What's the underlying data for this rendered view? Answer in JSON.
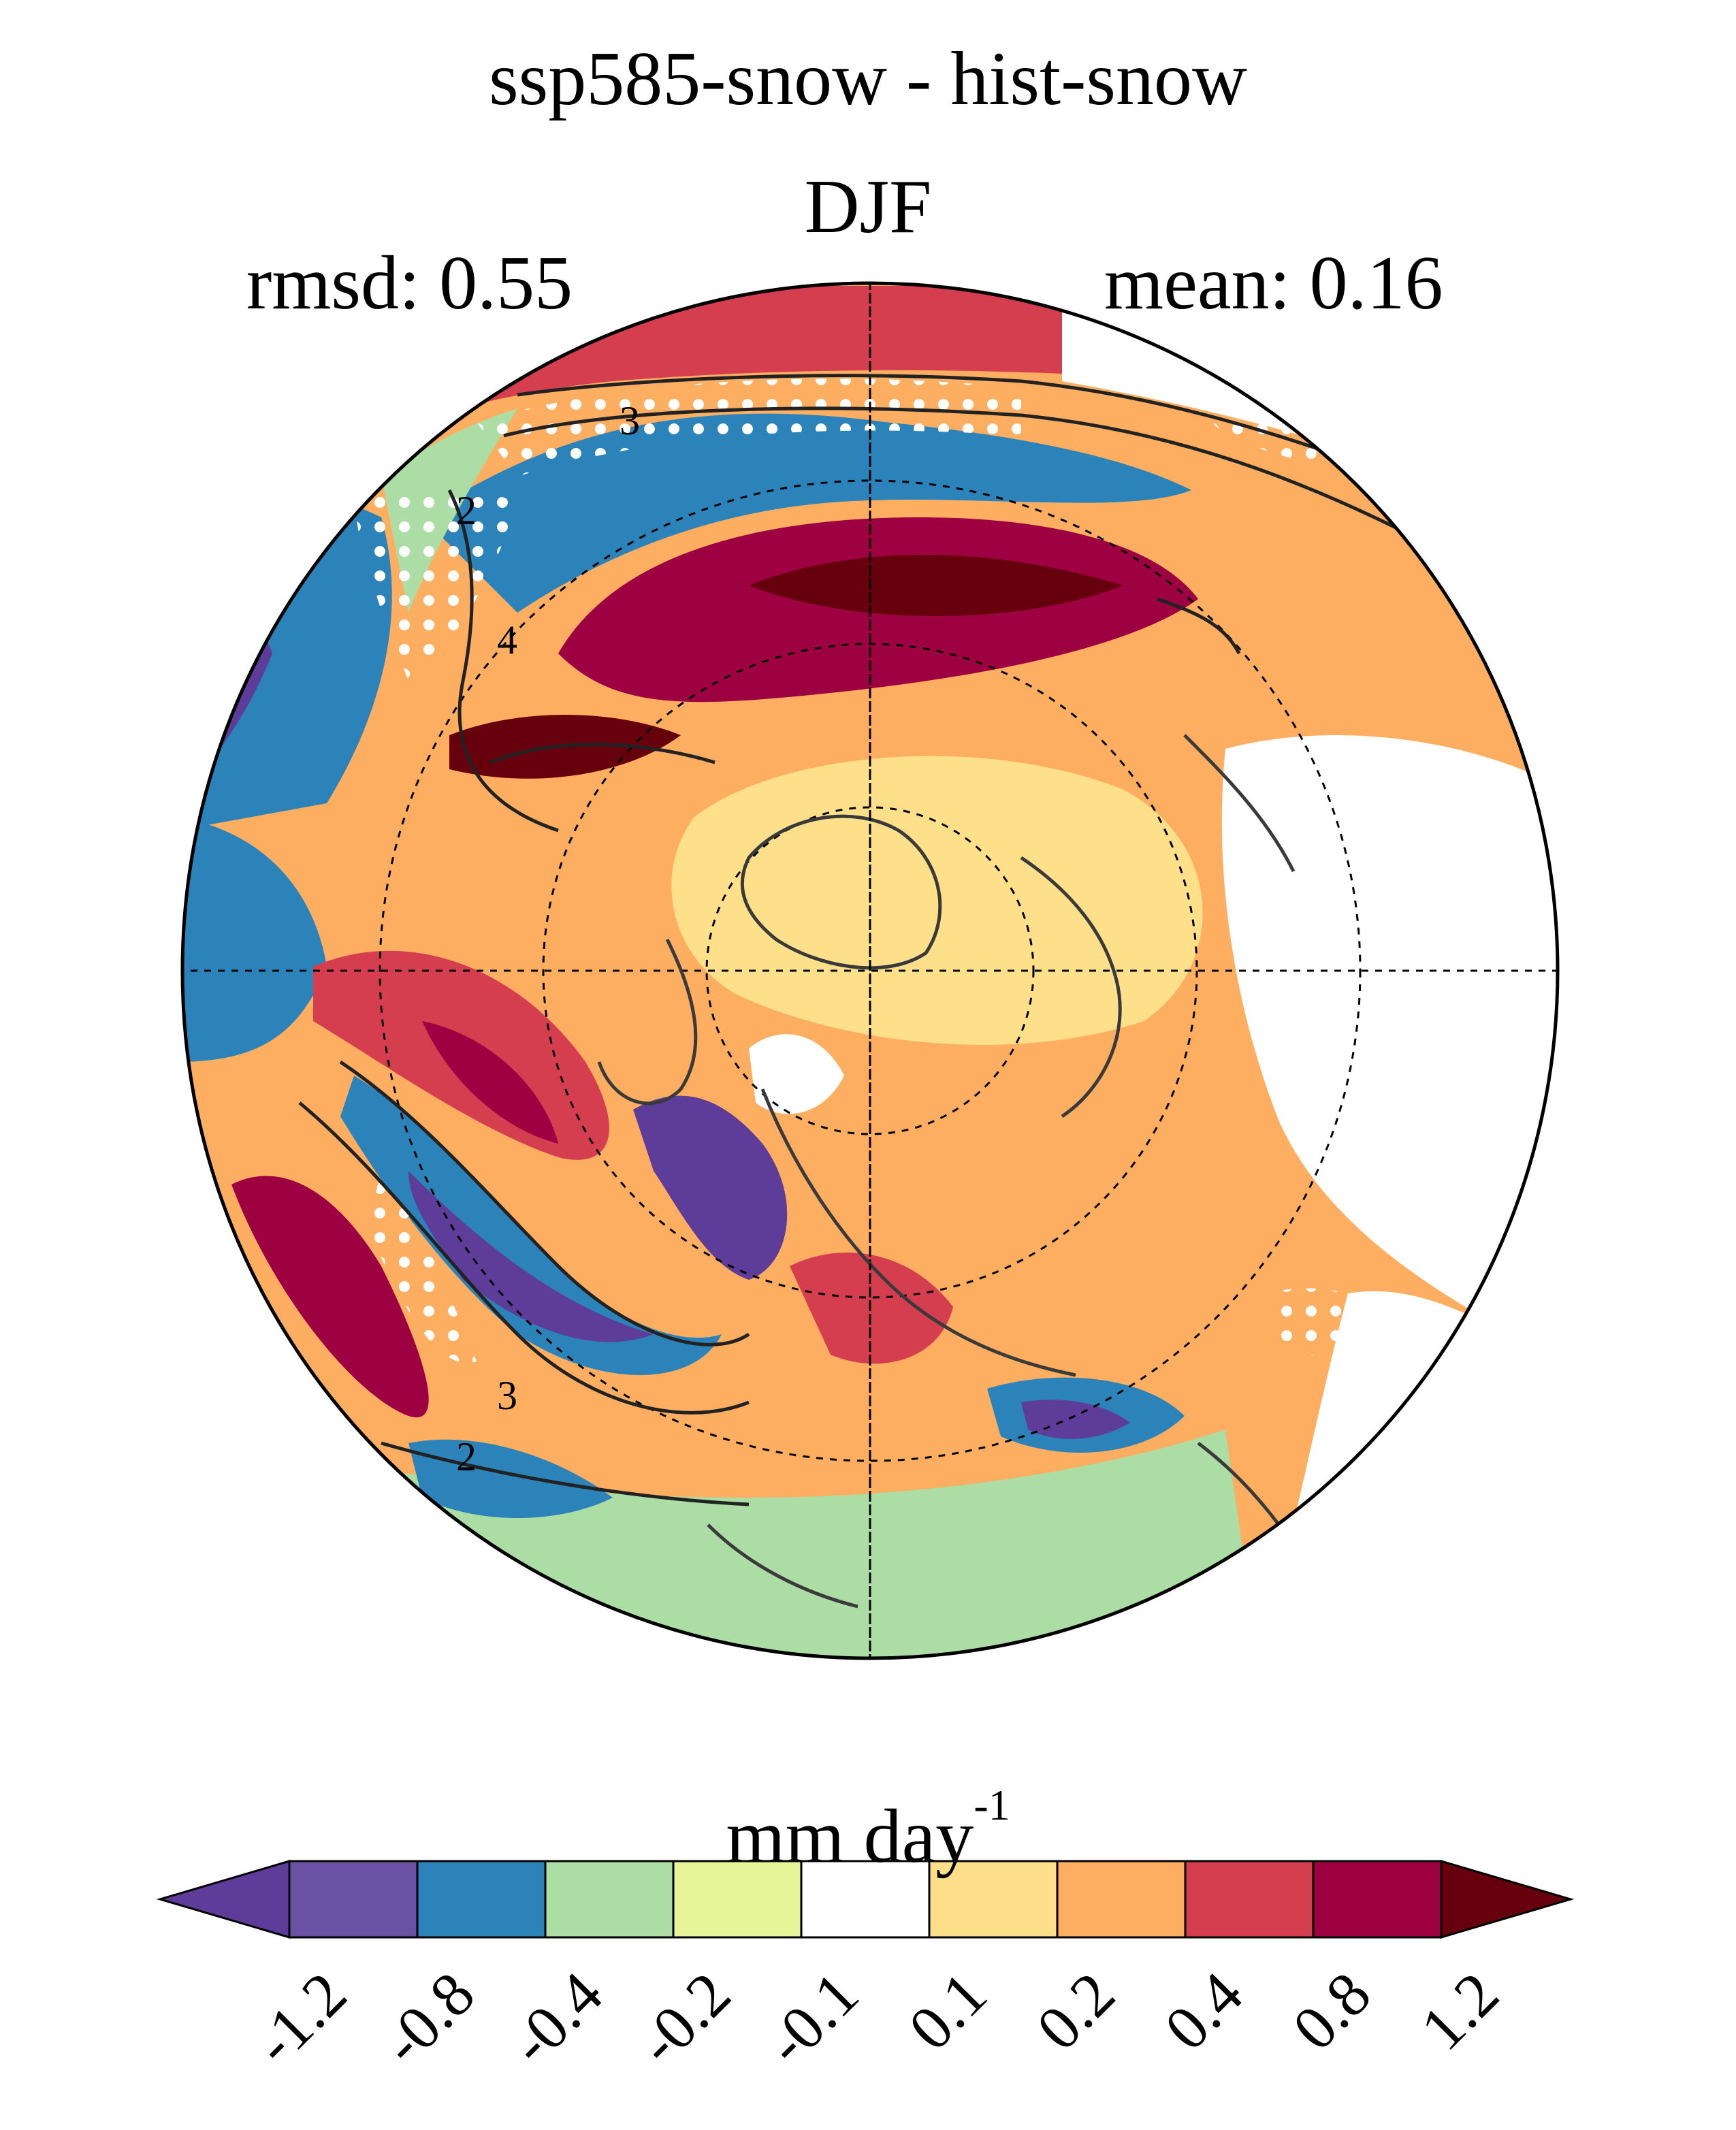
{
  "figure": {
    "title": "ssp585-snow - hist-snow",
    "season": "DJF",
    "rmsd_label": "rmsd: 0.55",
    "mean_label": "mean: 0.16"
  },
  "map": {
    "projection": "north-polar-stereographic",
    "contour_labels": [
      "3",
      "2",
      "4",
      "3",
      "2"
    ],
    "stippling": "white dots mark selected regions",
    "coastlines": true,
    "graticule": "dashed"
  },
  "colorbar": {
    "units_base": "mm day",
    "units_exp": "-1",
    "ticks": [
      "-1.2",
      "-0.8",
      "-0.4",
      "-0.2",
      "-0.1",
      "0.1",
      "0.2",
      "0.4",
      "0.8",
      "1.2"
    ],
    "colors": [
      "#5e3c99",
      "#6a51a3",
      "#2b83ba",
      "#abdda4",
      "#e6f598",
      "#ffffff",
      "#fee08b",
      "#fdae61",
      "#d53e4f",
      "#9e0142",
      "#67000d"
    ]
  }
}
